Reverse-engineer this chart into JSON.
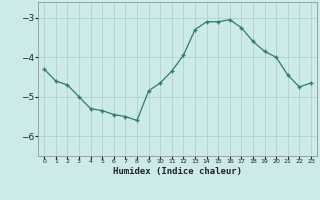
{
  "x": [
    0,
    1,
    2,
    3,
    4,
    5,
    6,
    7,
    8,
    9,
    10,
    11,
    12,
    13,
    14,
    15,
    16,
    17,
    18,
    19,
    20,
    21,
    22,
    23
  ],
  "y": [
    -4.3,
    -4.6,
    -4.7,
    -5.0,
    -5.3,
    -5.35,
    -5.45,
    -5.5,
    -5.6,
    -4.85,
    -4.65,
    -4.35,
    -3.95,
    -3.3,
    -3.1,
    -3.1,
    -3.05,
    -3.25,
    -3.6,
    -3.85,
    -4.0,
    -4.45,
    -4.75,
    -4.65
  ],
  "xlabel": "Humidex (Indice chaleur)",
  "line_color": "#2d7d6e",
  "bg_color": "#cceae7",
  "grid_color": "#aacfcc",
  "text_color": "#222222",
  "ylim": [
    -6.5,
    -2.6
  ],
  "xlim": [
    -0.5,
    23.5
  ],
  "yticks": [
    -6,
    -5,
    -4,
    -3
  ],
  "xticks": [
    0,
    1,
    2,
    3,
    4,
    5,
    6,
    7,
    8,
    9,
    10,
    11,
    12,
    13,
    14,
    15,
    16,
    17,
    18,
    19,
    20,
    21,
    22,
    23
  ]
}
